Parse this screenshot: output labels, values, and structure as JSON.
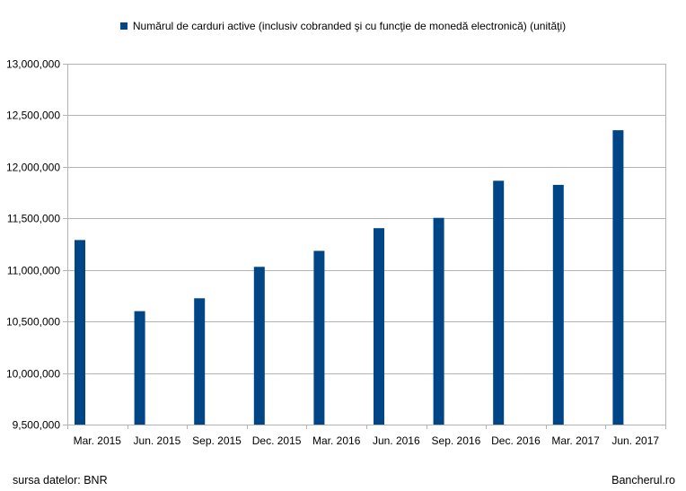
{
  "colors": {
    "bar": "#004586",
    "grid": "#b3b3b3",
    "axis": "#b3b3b3"
  },
  "chart_data": {
    "type": "bar",
    "title": "",
    "xlabel": "",
    "ylabel": "",
    "categories": [
      "Mar. 2015",
      "Jun. 2015",
      "Sep. 2015",
      "Dec. 2015",
      "Mar. 2016",
      "Jun. 2016",
      "Sep. 2016",
      "Dec. 2016",
      "Mar. 2017",
      "Jun. 2017"
    ],
    "series": [
      {
        "name": "Numărul de carduri active (inclusiv cobranded şi cu funcţie de monedă electronică) (unităţi)",
        "values": [
          11290000,
          10600000,
          10725000,
          11030000,
          11185000,
          11405000,
          11505000,
          11865000,
          11825000,
          12355000
        ]
      }
    ],
    "ylim": [
      9500000,
      13000000
    ],
    "yticks": [
      "9,500,000",
      "10,000,000",
      "10,500,000",
      "11,000,000",
      "11,500,000",
      "12,000,000",
      "12,500,000",
      "13,000,000"
    ],
    "ytick_values": [
      9500000,
      10000000,
      10500000,
      11000000,
      11500000,
      12000000,
      12500000,
      13000000
    ],
    "grid": true,
    "legend_position": "top-center"
  },
  "legend": {
    "label": "Numărul de carduri active (inclusiv cobranded şi cu funcţie de monedă electronică) (unităţi)"
  },
  "footer": {
    "source": "sursa datelor: BNR",
    "brand": "Bancherul.ro"
  }
}
